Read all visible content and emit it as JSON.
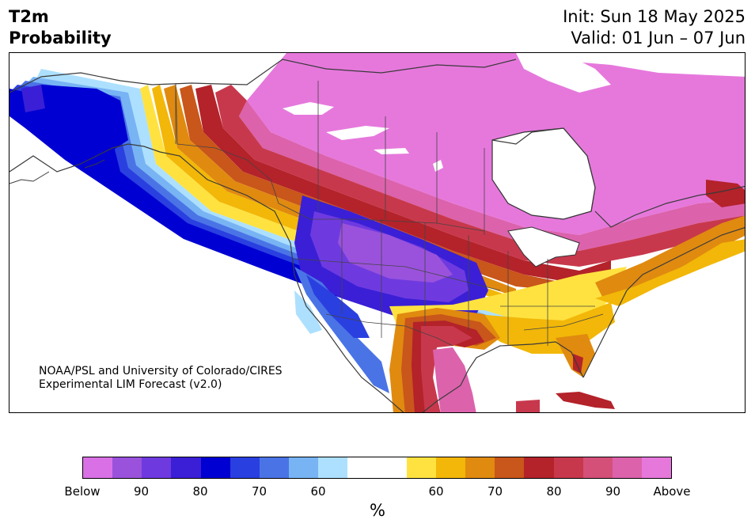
{
  "title": {
    "line1": "T2m",
    "line2": "Probability"
  },
  "header": {
    "init": "Init: Sun 18 May 2025",
    "valid": "Valid: 01 Jun – 07 Jun"
  },
  "credit": {
    "line1": "NOAA/PSL and University of Colorado/CIRES",
    "line2": "Experimental LIM Forecast (v2.0)"
  },
  "colorbar": {
    "colors": [
      "#da70e6",
      "#9a52dc",
      "#6e3ae0",
      "#3a1fd6",
      "#0000d2",
      "#2a3fe0",
      "#4a74e6",
      "#78b4f4",
      "#ade0fe",
      "#ffffff",
      "#ffffff",
      "#ffe240",
      "#f2b708",
      "#e08a10",
      "#c9561a",
      "#b4222a",
      "#c8384c",
      "#d45078",
      "#dc62ac",
      "#e678dc"
    ],
    "tick_labels": [
      "Below",
      "90",
      "80",
      "70",
      "60",
      "60",
      "70",
      "80",
      "90",
      "Above"
    ],
    "unit": "%"
  },
  "map": {
    "region": "North America",
    "variable": "2 m temperature probability"
  }
}
